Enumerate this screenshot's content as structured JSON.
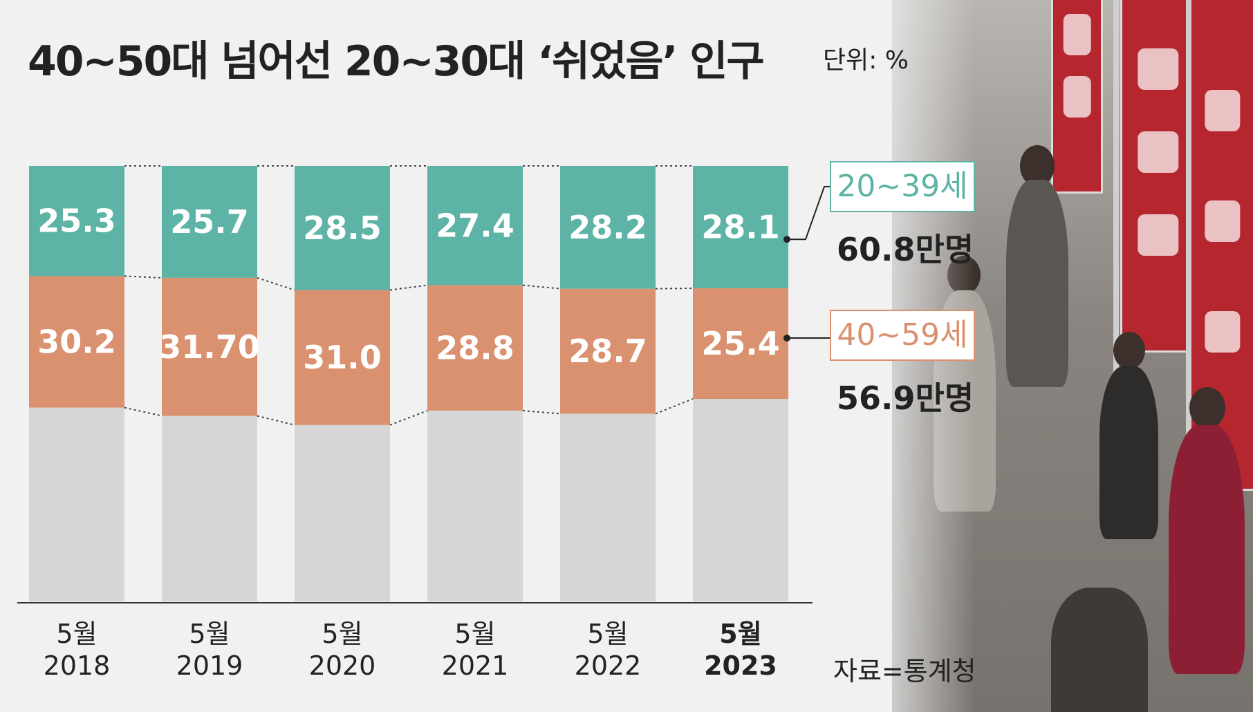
{
  "title": "40~50대 넘어선 20~30대 ‘쉬었음’ 인구",
  "unit": "단위: %",
  "source": "자료=통계청",
  "annotations": {
    "young": {
      "label": "20~39세",
      "value": "60.8만명",
      "color": "#5db4a6"
    },
    "middle": {
      "label": "40~59세",
      "value": "56.9만명",
      "color": "#d9916f"
    }
  },
  "colors": {
    "young": "#5db4a6",
    "middle": "#d9916f",
    "rest": "#d6d6d6"
  },
  "chart_data": {
    "type": "bar",
    "stacked": true,
    "categories": [
      "5월\n2018",
      "5월\n2019",
      "5월\n2020",
      "5월\n2021",
      "5월\n2022",
      "5월\n2023"
    ],
    "highlight_category_index": 5,
    "series": [
      {
        "name": "20~39세",
        "labels": [
          "25.3",
          "25.7",
          "28.5",
          "27.4",
          "28.2",
          "28.1"
        ],
        "values": [
          25.3,
          25.7,
          28.5,
          27.4,
          28.2,
          28.1
        ]
      },
      {
        "name": "40~59세",
        "labels": [
          "30.2",
          "31.70",
          "31.0",
          "28.8",
          "28.7",
          "25.4"
        ],
        "values": [
          30.2,
          31.7,
          31.0,
          28.8,
          28.7,
          25.4
        ]
      }
    ],
    "ylim": [
      0,
      100
    ],
    "stack_order": "top-down"
  }
}
